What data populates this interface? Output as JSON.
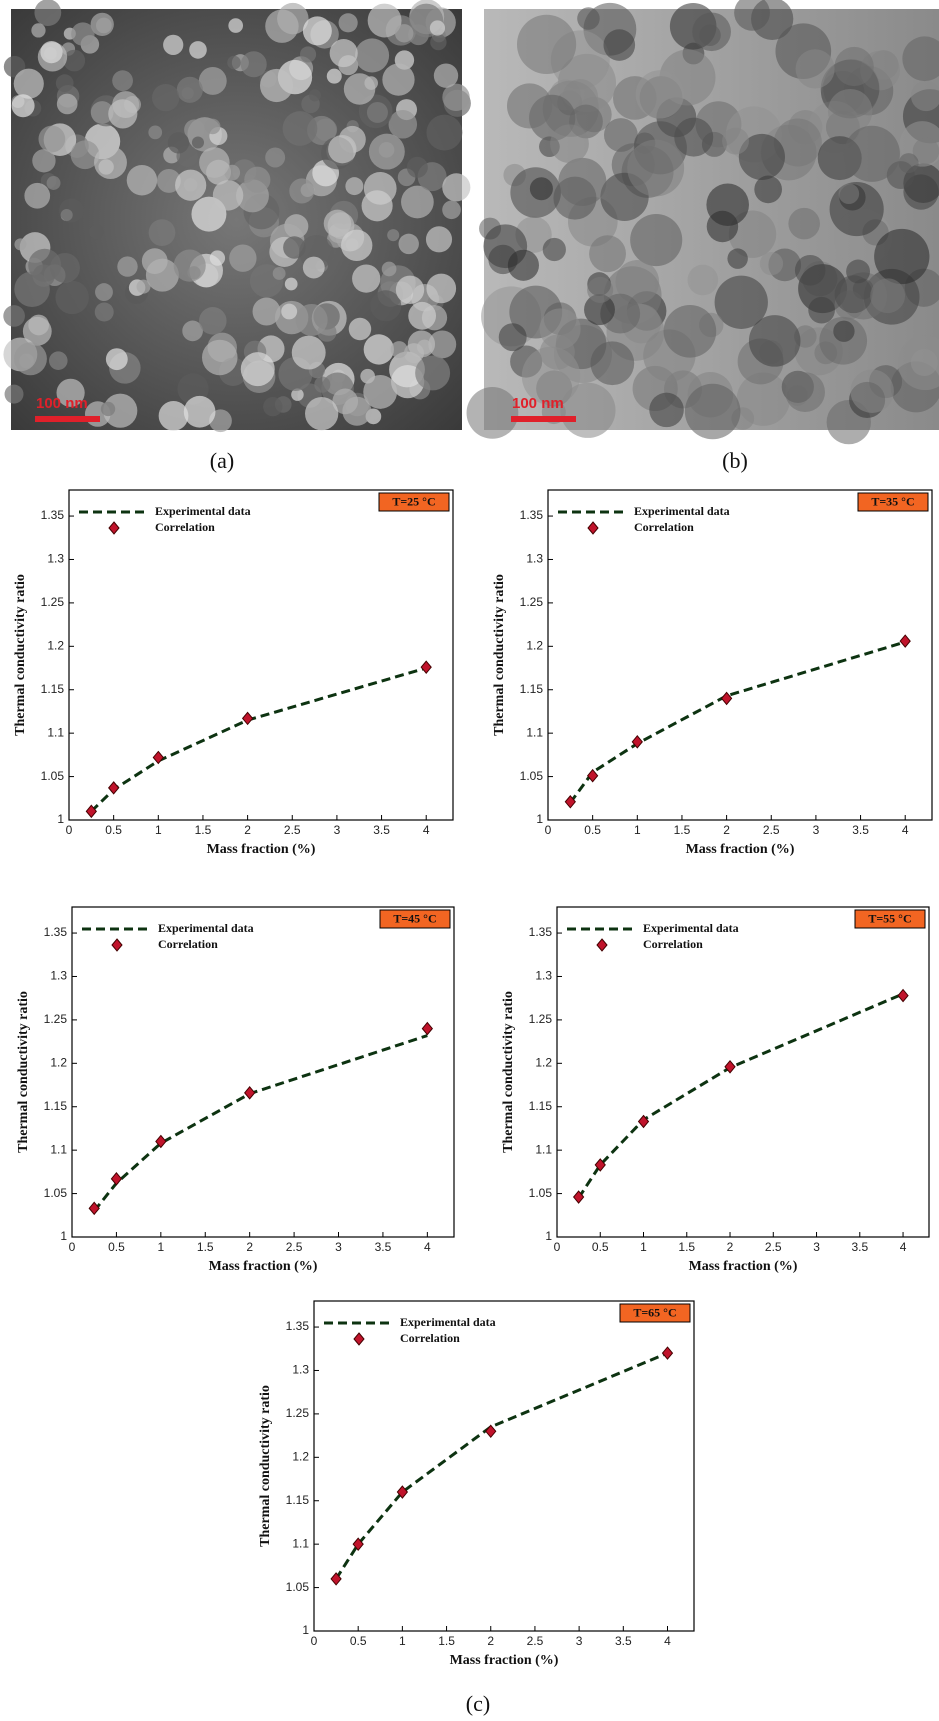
{
  "panels": [
    {
      "label": "(a)",
      "scale_bar": "100 nm"
    },
    {
      "label": "(b)",
      "scale_bar": "100 nm"
    },
    {
      "label": "(c)"
    }
  ],
  "chart_data": [
    {
      "type": "line",
      "title": "T=25 °C",
      "xlabel": "Mass fraction (%)",
      "ylabel": "Thermal conductivity ratio",
      "x": [
        0.25,
        0.5,
        1,
        2,
        4
      ],
      "series": [
        {
          "name": "Experimental data",
          "color": "#0d3311",
          "style": "dashed",
          "values": [
            1.01,
            1.035,
            1.068,
            1.115,
            1.175
          ]
        },
        {
          "name": "Correlation",
          "color": "#c0132b",
          "style": "diamond",
          "values": [
            1.01,
            1.037,
            1.072,
            1.117,
            1.176
          ]
        }
      ],
      "xlim": [
        0,
        4.3
      ],
      "ylim": [
        1,
        1.38
      ],
      "xticks": [
        0,
        0.5,
        1,
        1.5,
        2,
        2.5,
        3,
        3.5,
        4
      ],
      "yticks": [
        1,
        1.05,
        1.1,
        1.15,
        1.2,
        1.25,
        1.3,
        1.35
      ],
      "title_color": "#f26522"
    },
    {
      "type": "line",
      "title": "T=35 °C",
      "xlabel": "Mass fraction (%)",
      "ylabel": "Thermal conductivity ratio",
      "x": [
        0.25,
        0.5,
        1,
        2,
        4
      ],
      "series": [
        {
          "name": "Experimental data",
          "color": "#0d3311",
          "style": "dashed",
          "values": [
            1.02,
            1.055,
            1.088,
            1.143,
            1.205
          ]
        },
        {
          "name": "Correlation",
          "color": "#c0132b",
          "style": "diamond",
          "values": [
            1.021,
            1.051,
            1.09,
            1.14,
            1.206
          ]
        }
      ],
      "xlim": [
        0,
        4.3
      ],
      "ylim": [
        1,
        1.38
      ],
      "xticks": [
        0,
        0.5,
        1,
        1.5,
        2,
        2.5,
        3,
        3.5,
        4
      ],
      "yticks": [
        1,
        1.05,
        1.1,
        1.15,
        1.2,
        1.25,
        1.3,
        1.35
      ],
      "title_color": "#f26522"
    },
    {
      "type": "line",
      "title": "T=45 °C",
      "xlabel": "Mass fraction (%)",
      "ylabel": "Thermal conductivity ratio",
      "x": [
        0.25,
        0.5,
        1,
        2,
        4
      ],
      "series": [
        {
          "name": "Experimental data",
          "color": "#0d3311",
          "style": "dashed",
          "values": [
            1.03,
            1.062,
            1.108,
            1.165,
            1.232
          ]
        },
        {
          "name": "Correlation",
          "color": "#c0132b",
          "style": "diamond",
          "values": [
            1.033,
            1.067,
            1.11,
            1.166,
            1.24
          ]
        }
      ],
      "xlim": [
        0,
        4.3
      ],
      "ylim": [
        1,
        1.38
      ],
      "xticks": [
        0,
        0.5,
        1,
        1.5,
        2,
        2.5,
        3,
        3.5,
        4
      ],
      "yticks": [
        1,
        1.05,
        1.1,
        1.15,
        1.2,
        1.25,
        1.3,
        1.35
      ],
      "title_color": "#f26522"
    },
    {
      "type": "line",
      "title": "T=55 °C",
      "xlabel": "Mass fraction (%)",
      "ylabel": "Thermal conductivity ratio",
      "x": [
        0.25,
        0.5,
        1,
        2,
        4
      ],
      "series": [
        {
          "name": "Experimental data",
          "color": "#0d3311",
          "style": "dashed",
          "values": [
            1.045,
            1.083,
            1.135,
            1.195,
            1.28
          ]
        },
        {
          "name": "Correlation",
          "color": "#c0132b",
          "style": "diamond",
          "values": [
            1.046,
            1.083,
            1.133,
            1.196,
            1.278
          ]
        }
      ],
      "xlim": [
        0,
        4.3
      ],
      "ylim": [
        1,
        1.38
      ],
      "xticks": [
        0,
        0.5,
        1,
        1.5,
        2,
        2.5,
        3,
        3.5,
        4
      ],
      "yticks": [
        1,
        1.05,
        1.1,
        1.15,
        1.2,
        1.25,
        1.3,
        1.35
      ],
      "title_color": "#f26522"
    },
    {
      "type": "line",
      "title": "T=65 °C",
      "xlabel": "Mass fraction (%)",
      "ylabel": "Thermal conductivity ratio",
      "x": [
        0.25,
        0.5,
        1,
        2,
        4
      ],
      "series": [
        {
          "name": "Experimental data",
          "color": "#0d3311",
          "style": "dashed",
          "values": [
            1.06,
            1.1,
            1.16,
            1.235,
            1.32
          ]
        },
        {
          "name": "Correlation",
          "color": "#c0132b",
          "style": "diamond",
          "values": [
            1.06,
            1.1,
            1.16,
            1.23,
            1.32
          ]
        }
      ],
      "xlim": [
        0,
        4.3
      ],
      "ylim": [
        1,
        1.38
      ],
      "xticks": [
        0,
        0.5,
        1,
        1.5,
        2,
        2.5,
        3,
        3.5,
        4
      ],
      "yticks": [
        1,
        1.05,
        1.1,
        1.15,
        1.2,
        1.25,
        1.3,
        1.35
      ],
      "title_color": "#f26522"
    }
  ]
}
